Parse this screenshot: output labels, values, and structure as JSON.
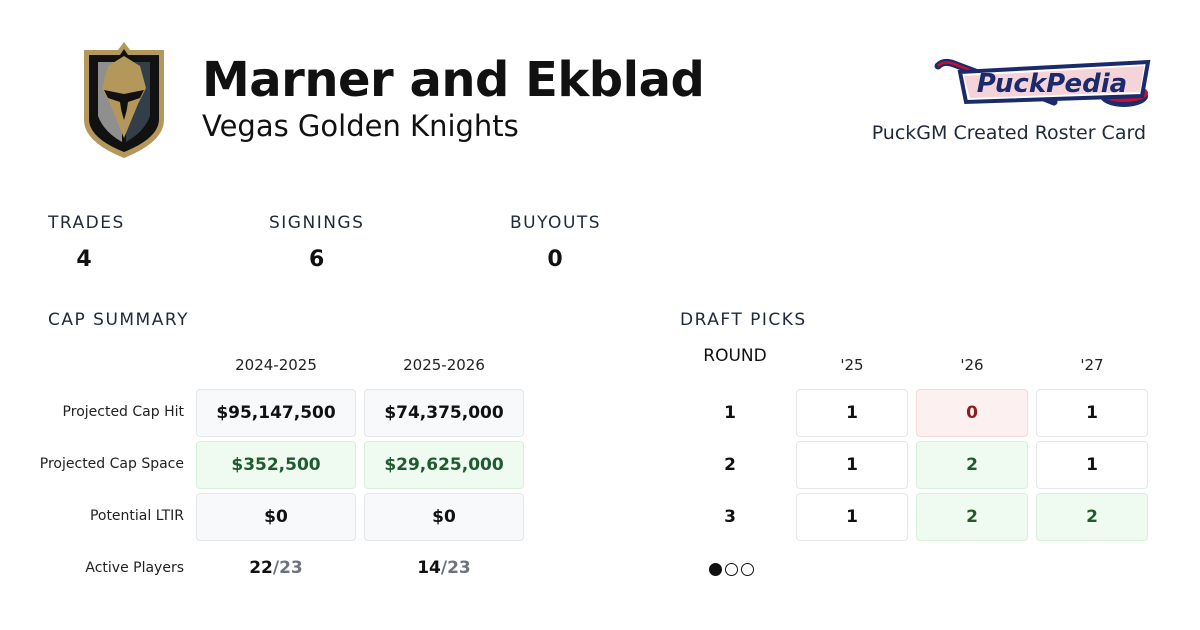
{
  "header": {
    "title": "Marner and Ekblad",
    "team": "Vegas Golden Knights",
    "team_logo_icon": "vegas-golden-knights-helmet-logo",
    "brand_logo_text": "PuckPedia",
    "brand_caption": "PuckGM Created Roster Card"
  },
  "stats": [
    {
      "label": "TRADES",
      "value": "4"
    },
    {
      "label": "SIGNINGS",
      "value": "6"
    },
    {
      "label": "BUYOUTS",
      "value": "0"
    }
  ],
  "cap_summary": {
    "title": "CAP SUMMARY",
    "seasons": [
      "2024-2025",
      "2025-2026"
    ],
    "rows": [
      {
        "label": "Projected Cap Hit",
        "values": [
          "$95,147,500",
          "$74,375,000"
        ]
      },
      {
        "label": "Projected Cap Space",
        "values": [
          "$352,500",
          "$29,625,000"
        ]
      },
      {
        "label": "Potential LTIR",
        "values": [
          "$0",
          "$0"
        ]
      }
    ],
    "active_players": {
      "label": "Active Players",
      "values": [
        {
          "count": "22",
          "max": "/23"
        },
        {
          "count": "14",
          "max": "/23"
        }
      ]
    }
  },
  "draft_picks": {
    "title": "DRAFT PICKS",
    "round_label": "ROUND",
    "years": [
      "'25",
      "'26",
      "'27"
    ],
    "rounds": [
      {
        "round": "1",
        "picks": [
          "1",
          "0",
          "1"
        ]
      },
      {
        "round": "2",
        "picks": [
          "1",
          "2",
          "1"
        ]
      },
      {
        "round": "3",
        "picks": [
          "1",
          "2",
          "2"
        ]
      }
    ],
    "pagination": {
      "pages": 3,
      "current": 1
    }
  },
  "colors": {
    "gold": "#b4975a",
    "steel": "#333f48",
    "green_text": "#1f5b2e",
    "red_text": "#8b1e1e",
    "brand_navy": "#1b2a6b",
    "brand_red": "#c8102e"
  }
}
